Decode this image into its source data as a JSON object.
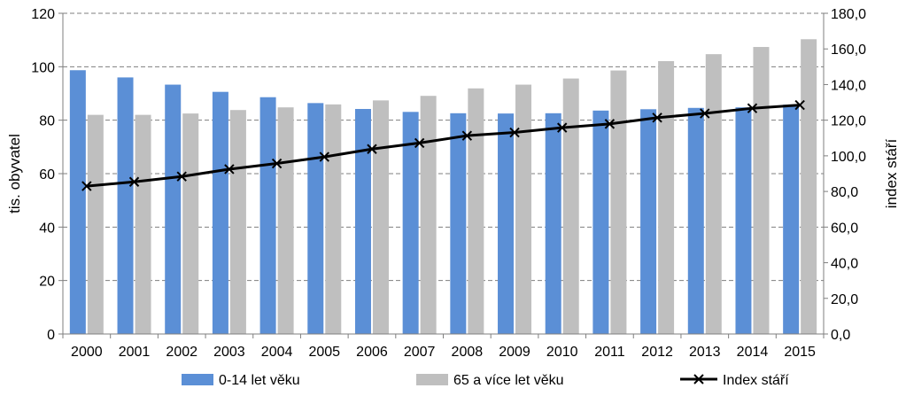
{
  "chart_data": {
    "type": "bar",
    "categories": [
      "2000",
      "2001",
      "2002",
      "2003",
      "2004",
      "2005",
      "2006",
      "2007",
      "2008",
      "2009",
      "2010",
      "2011",
      "2012",
      "2013",
      "2014",
      "2015"
    ],
    "series": [
      {
        "name": "0-14 let věku",
        "kind": "bar",
        "axis": "left",
        "color": "#5B8FD6",
        "values": [
          98.7,
          96.0,
          93.3,
          90.6,
          88.6,
          86.4,
          84.2,
          83.1,
          82.6,
          82.5,
          82.6,
          83.6,
          84.1,
          84.6,
          84.8,
          85.8
        ]
      },
      {
        "name": "65 a více let věku",
        "kind": "bar",
        "axis": "left",
        "color": "#BFBFBF",
        "values": [
          82.0,
          82.0,
          82.5,
          83.8,
          84.8,
          85.9,
          87.4,
          89.1,
          91.9,
          93.3,
          95.6,
          98.6,
          102.1,
          104.7,
          107.4,
          110.3
        ]
      },
      {
        "name": "Index stáří",
        "kind": "line",
        "axis": "right",
        "color": "#000000",
        "values": [
          83.0,
          85.4,
          88.4,
          92.5,
          95.7,
          99.4,
          103.8,
          107.2,
          111.3,
          113.1,
          115.8,
          117.9,
          121.4,
          123.8,
          126.7,
          128.5
        ]
      }
    ],
    "ylabel": "tis. obyvatel",
    "ylabel_right": "index stáří",
    "ylim": [
      0,
      120
    ],
    "ylim_right": [
      0,
      180
    ],
    "yticks": [
      "0",
      "20",
      "40",
      "60",
      "80",
      "100",
      "120"
    ],
    "yticks_right": [
      "0,0",
      "20,0",
      "40,0",
      "60,0",
      "80,0",
      "100,0",
      "120,0",
      "140,0",
      "160,0",
      "180,0"
    ],
    "grid": "dashed horizontal",
    "legend": "bottom"
  }
}
